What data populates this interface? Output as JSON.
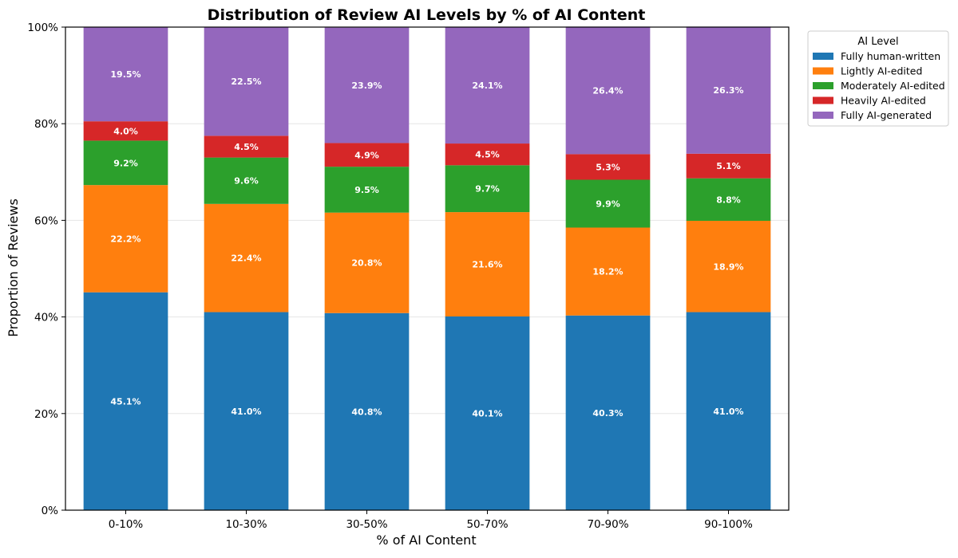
{
  "chart_data": {
    "type": "bar",
    "stacked": true,
    "title": "Distribution of Review AI Levels by % of AI Content",
    "xlabel": "% of AI Content",
    "ylabel": "Proportion of Reviews",
    "ylim": [
      0,
      100
    ],
    "yticks": [
      0,
      20,
      40,
      60,
      80,
      100
    ],
    "ytick_labels": [
      "0%",
      "20%",
      "40%",
      "60%",
      "80%",
      "100%"
    ],
    "grid": true,
    "legend": {
      "title": "AI Level",
      "placement": "outside-right-top"
    },
    "categories": [
      "0-10%",
      "10-30%",
      "30-50%",
      "50-70%",
      "70-90%",
      "90-100%"
    ],
    "series": [
      {
        "name": "Fully human-written",
        "color": "#1f77b4",
        "values": [
          45.1,
          41.0,
          40.8,
          40.1,
          40.3,
          41.0
        ],
        "labels": [
          "45.1%",
          "41.0%",
          "40.8%",
          "40.1%",
          "40.3%",
          "41.0%"
        ]
      },
      {
        "name": "Lightly AI-edited",
        "color": "#ff7f0e",
        "values": [
          22.2,
          22.4,
          20.8,
          21.6,
          18.2,
          18.9
        ],
        "labels": [
          "22.2%",
          "22.4%",
          "20.8%",
          "21.6%",
          "18.2%",
          "18.9%"
        ]
      },
      {
        "name": "Moderately AI-edited",
        "color": "#2ca02c",
        "values": [
          9.2,
          9.6,
          9.5,
          9.7,
          9.9,
          8.8
        ],
        "labels": [
          "9.2%",
          "9.6%",
          "9.5%",
          "9.7%",
          "9.9%",
          "8.8%"
        ]
      },
      {
        "name": "Heavily AI-edited",
        "color": "#d62728",
        "values": [
          4.0,
          4.5,
          4.9,
          4.5,
          5.3,
          5.1
        ],
        "labels": [
          "4.0%",
          "4.5%",
          "4.9%",
          "4.5%",
          "5.3%",
          "5.1%"
        ]
      },
      {
        "name": "Fully AI-generated",
        "color": "#9467bd",
        "values": [
          19.5,
          22.5,
          23.9,
          24.1,
          26.4,
          26.3
        ],
        "labels": [
          "19.5%",
          "22.5%",
          "23.9%",
          "24.1%",
          "26.4%",
          "26.3%"
        ]
      }
    ]
  }
}
